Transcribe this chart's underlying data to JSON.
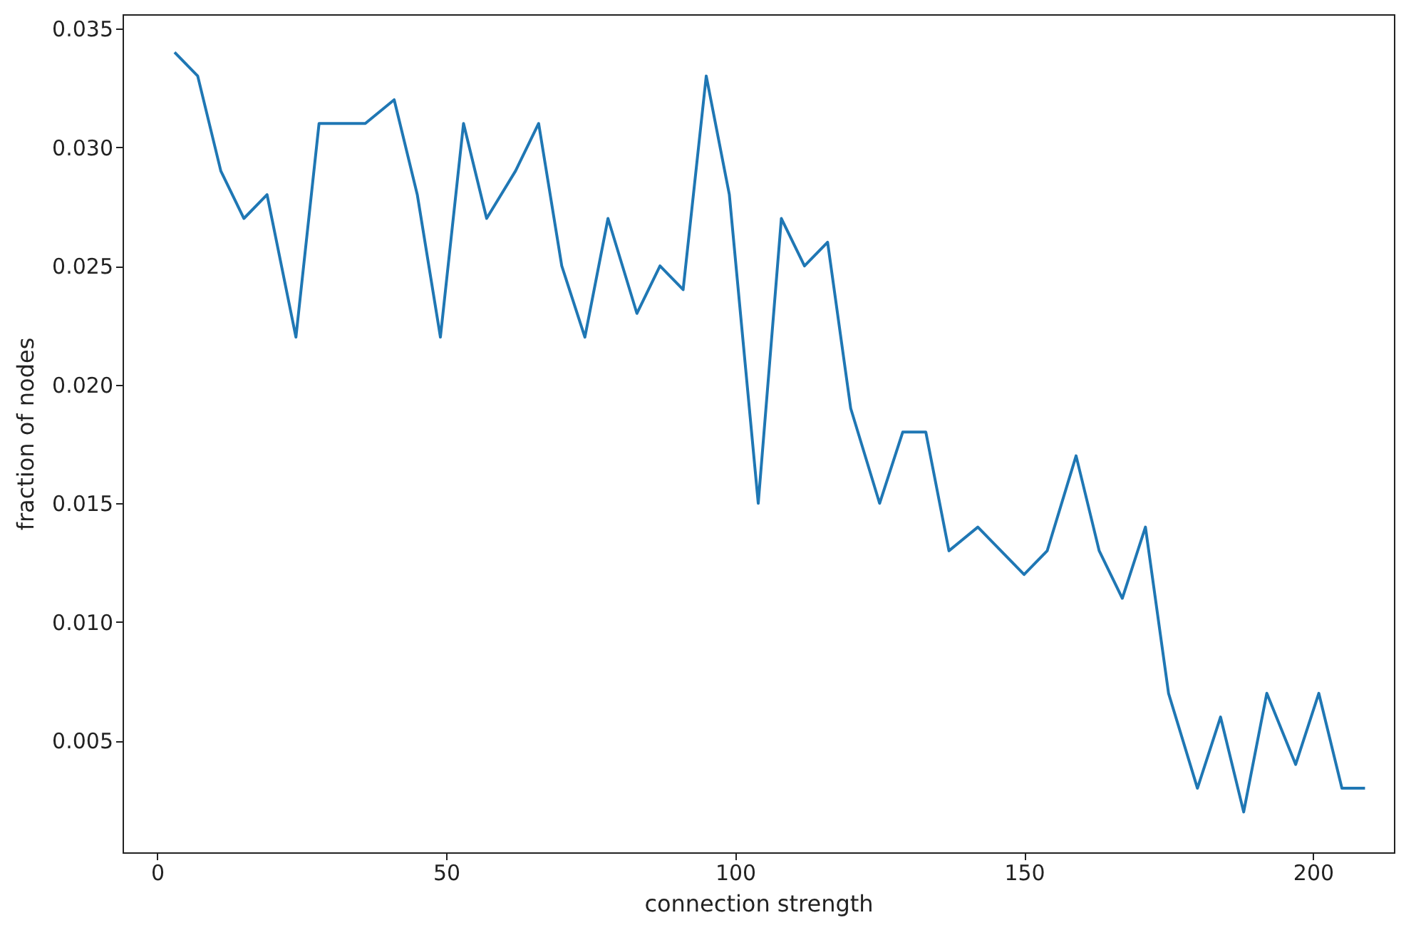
{
  "chart_data": {
    "type": "line",
    "xlabel": "connection strength",
    "ylabel": "fraction of nodes",
    "x": [
      3,
      7,
      11,
      15,
      19,
      24,
      28,
      32,
      36,
      41,
      45,
      49,
      53,
      57,
      62,
      66,
      70,
      74,
      78,
      83,
      87,
      91,
      95,
      99,
      104,
      108,
      112,
      116,
      120,
      125,
      129,
      133,
      137,
      142,
      146,
      150,
      154,
      159,
      163,
      167,
      171,
      175,
      180,
      184,
      188,
      192,
      197,
      201,
      205,
      209
    ],
    "series": [
      {
        "color": "#1f77b4",
        "values": [
          0.034,
          0.033,
          0.029,
          0.027,
          0.028,
          0.022,
          0.031,
          0.031,
          0.031,
          0.032,
          0.028,
          0.022,
          0.031,
          0.027,
          0.029,
          0.031,
          0.025,
          0.022,
          0.027,
          0.023,
          0.025,
          0.024,
          0.033,
          0.028,
          0.015,
          0.027,
          0.025,
          0.026,
          0.019,
          0.015,
          0.018,
          0.018,
          0.013,
          0.014,
          0.013,
          0.012,
          0.013,
          0.017,
          0.013,
          0.011,
          0.014,
          0.007,
          0.003,
          0.006,
          0.002,
          0.007,
          0.004,
          0.007,
          0.003,
          0.003
        ]
      }
    ],
    "xlim": [
      -6,
      214
    ],
    "xticks": [
      0,
      50,
      100,
      150,
      200
    ],
    "ylim": [
      0.0003,
      0.0356
    ],
    "yticks": [
      {
        "value": 0.005,
        "label": "0.005"
      },
      {
        "value": 0.01,
        "label": "0.010"
      },
      {
        "value": 0.015,
        "label": "0.015"
      },
      {
        "value": 0.02,
        "label": "0.020"
      },
      {
        "value": 0.025,
        "label": "0.025"
      },
      {
        "value": 0.03,
        "label": "0.030"
      },
      {
        "value": 0.035,
        "label": "0.035"
      }
    ],
    "grid": false
  }
}
